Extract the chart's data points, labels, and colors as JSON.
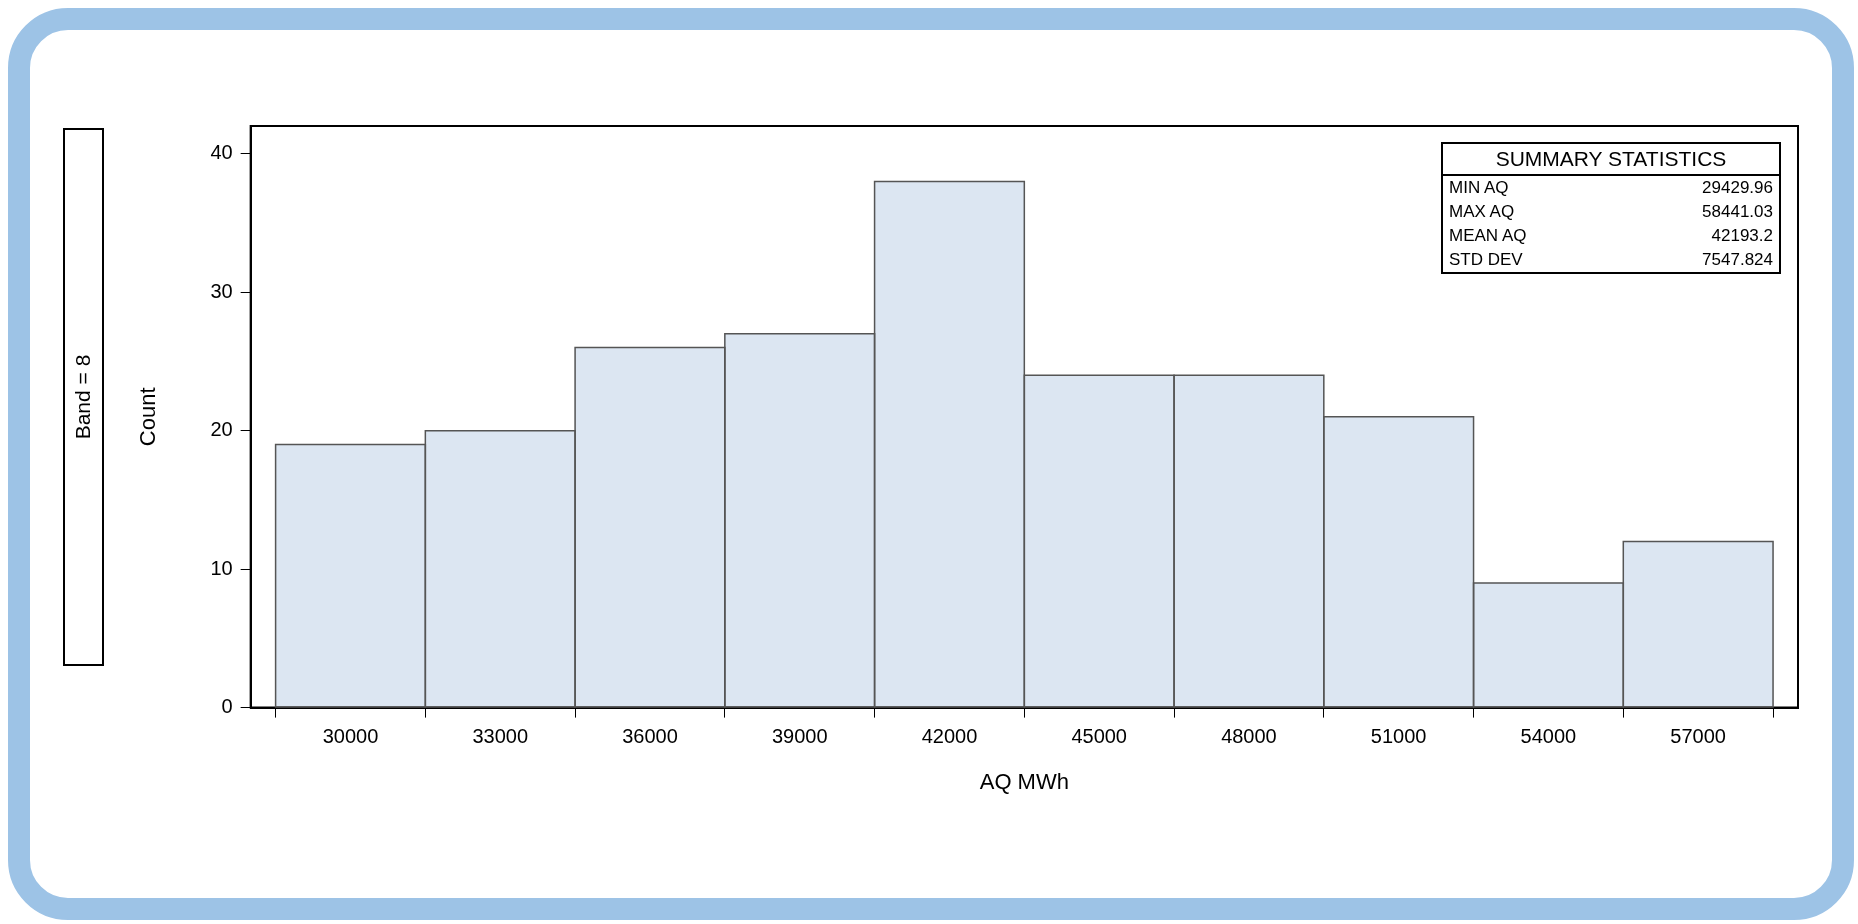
{
  "chart_data": {
    "type": "histogram",
    "title": "Band = 8",
    "xlabel": "AQ MWh",
    "ylabel": "Count",
    "bins": [
      28500,
      31500,
      34500,
      37500,
      40500,
      43500,
      46500,
      49500,
      52500,
      55500,
      58500
    ],
    "values": [
      19,
      20,
      26,
      27,
      38,
      24,
      24,
      21,
      9,
      12
    ],
    "color": "#dce6f2",
    "xlim": [
      28000,
      59000
    ],
    "xticks": [
      30000,
      33000,
      36000,
      39000,
      42000,
      45000,
      48000,
      51000,
      54000,
      57000
    ],
    "ylim": [
      0,
      42
    ],
    "yticks": [
      0,
      10,
      20,
      30,
      40
    ],
    "annotations": [
      "SUMMARY STATISTICS",
      "MIN AQ",
      "29429.96",
      "MAX AQ",
      "58441.03",
      "MEAN AQ",
      "42193.2",
      "STD DEV",
      "7547.824"
    ]
  }
}
